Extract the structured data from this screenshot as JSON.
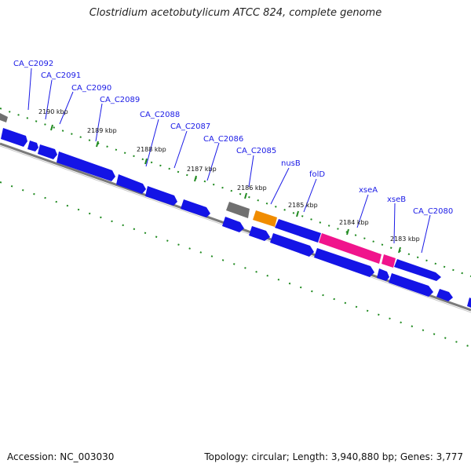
{
  "title": "Clostridium acetobutylicum ATCC 824, complete genome",
  "footer": {
    "accession": "Accession: NC_003030",
    "topology": "Topology: circular; Length: 3,940,880 bp; Genes: 3,777"
  },
  "colors": {
    "cds": "#1414e6",
    "cds_dark": "#0000a0",
    "rna_gray": "#707070",
    "orange": "#f08c00",
    "pink": "#f0148c",
    "backbone": "#7a7a7a",
    "tick": "#1f8a1f",
    "label": "#1a1ae6"
  },
  "gene_labels": [
    "CA_C2092",
    "CA_C2091",
    "CA_C2090",
    "CA_C2089",
    "CA_C2088",
    "CA_C2087",
    "CA_C2086",
    "CA_C2085",
    "nusB",
    "folD",
    "xseA",
    "xseB",
    "CA_C2080"
  ],
  "kbp_labels": [
    "2190 kbp",
    "2189 kbp",
    "2188 kbp",
    "2187 kbp",
    "2186 kbp",
    "2185 kbp",
    "2184 kbp",
    "2183 kbp"
  ]
}
